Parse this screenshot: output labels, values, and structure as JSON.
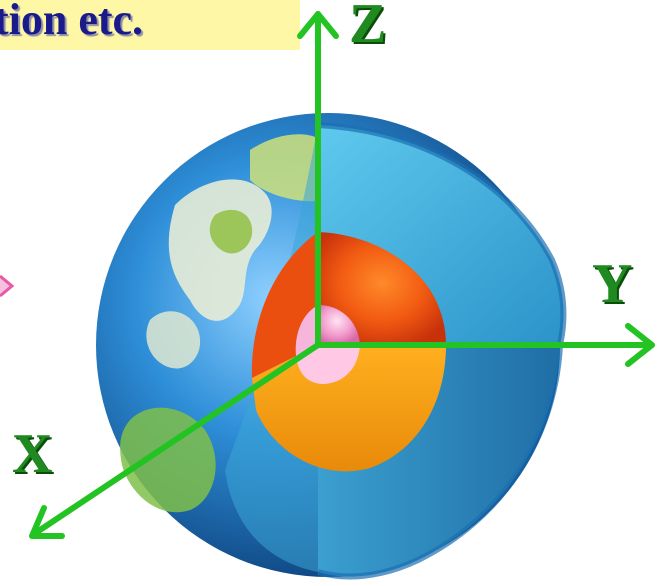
{
  "banner": {
    "text": "tion etc."
  },
  "axes": {
    "z_label": "Z",
    "y_label": "Y",
    "x_label": "X"
  },
  "colors": {
    "axis": "#22c322",
    "banner_bg": "#fdf7a6",
    "banner_text": "#1a1a8a",
    "pointer": "#e85aa8"
  },
  "icons": {
    "globe": "earth-cutaway-icon",
    "pointer": "arrow-pointer-icon"
  }
}
